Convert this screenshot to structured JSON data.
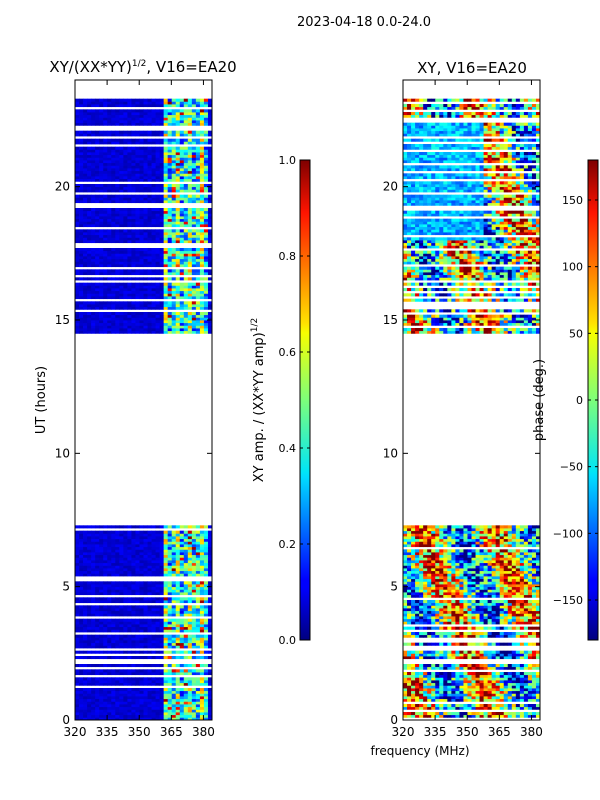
{
  "figure": {
    "suptitle": "2023-04-18 0.0-24.0",
    "shared_xlabel": "frequency (MHz)"
  },
  "chart_data": [
    {
      "type": "heatmap",
      "title": "XY/(XX*YY)",
      "title_sup": "1/2",
      "title_suffix": ", V16=EA20",
      "xlabel": "frequency (MHz)",
      "ylabel": "UT (hours)",
      "xlim": [
        320,
        384
      ],
      "ylim": [
        0,
        24
      ],
      "xticks": [
        320,
        335,
        350,
        365,
        380
      ],
      "yticks": [
        0,
        5,
        10,
        15,
        20
      ],
      "data_ranges_ut": [
        [
          0,
          7.3
        ],
        [
          14.5,
          23.3
        ]
      ],
      "bright_channel_range_mhz": [
        361,
        382
      ],
      "colorbar": {
        "label": "XY amp. / (XX*YY amp)",
        "label_sup": "1/2",
        "range": [
          0.0,
          1.0
        ],
        "ticks": [
          "0.0",
          "0.2",
          "0.4",
          "0.6",
          "0.8",
          "1.0"
        ],
        "tick_values": [
          0.0,
          0.2,
          0.4,
          0.6,
          0.8,
          1.0
        ],
        "colormap": "jet"
      }
    },
    {
      "type": "heatmap",
      "title": "XY, V16=EA20",
      "xlabel": "frequency (MHz)",
      "ylabel": "",
      "xlim": [
        320,
        384
      ],
      "ylim": [
        0,
        24
      ],
      "xticks": [
        320,
        335,
        350,
        365,
        380
      ],
      "yticks": [
        0,
        5,
        10,
        15,
        20
      ],
      "data_ranges_ut": [
        [
          0,
          7.3
        ],
        [
          14.5,
          23.3
        ]
      ],
      "colorbar": {
        "label": "phase (deg.)",
        "range": [
          -180,
          180
        ],
        "ticks": [
          "−150",
          "−100",
          "−50",
          "0",
          "50",
          "100",
          "150"
        ],
        "tick_values": [
          -150,
          -100,
          -50,
          0,
          50,
          100,
          150
        ],
        "colormap": "jet"
      }
    }
  ]
}
